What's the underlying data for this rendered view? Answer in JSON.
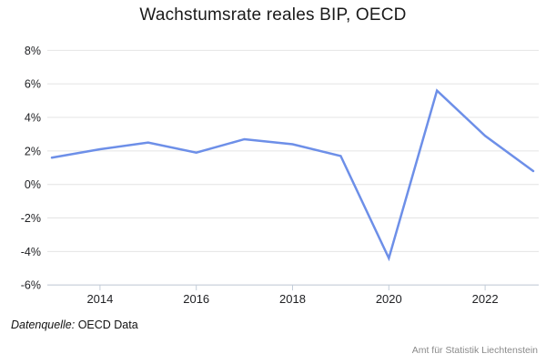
{
  "footer": {
    "source_label": "Datenquelle:",
    "source_value": "OECD Data",
    "attribution": "Amt für Statistik Liechtenstein"
  },
  "chart_data": {
    "type": "line",
    "title": "Wachstumsrate reales BIP, OECD",
    "x": [
      2013,
      2014,
      2015,
      2016,
      2017,
      2018,
      2019,
      2020,
      2021,
      2022,
      2023
    ],
    "values": [
      1.6,
      2.1,
      2.5,
      1.9,
      2.7,
      2.4,
      1.7,
      -4.4,
      5.6,
      2.9,
      0.8
    ],
    "xlabel": "",
    "ylabel": "",
    "ylim": [
      -6,
      8
    ],
    "yticks": [
      8,
      6,
      4,
      2,
      0,
      -2,
      -4,
      -6
    ],
    "ytick_suffix": "%",
    "xticks": [
      2014,
      2016,
      2018,
      2020,
      2022
    ],
    "grid": true,
    "legend": false,
    "line_color": "#6d8fe8",
    "grid_color": "#e4e4e4",
    "axis_color": "#c3cdd9",
    "text_color": "#202124"
  }
}
